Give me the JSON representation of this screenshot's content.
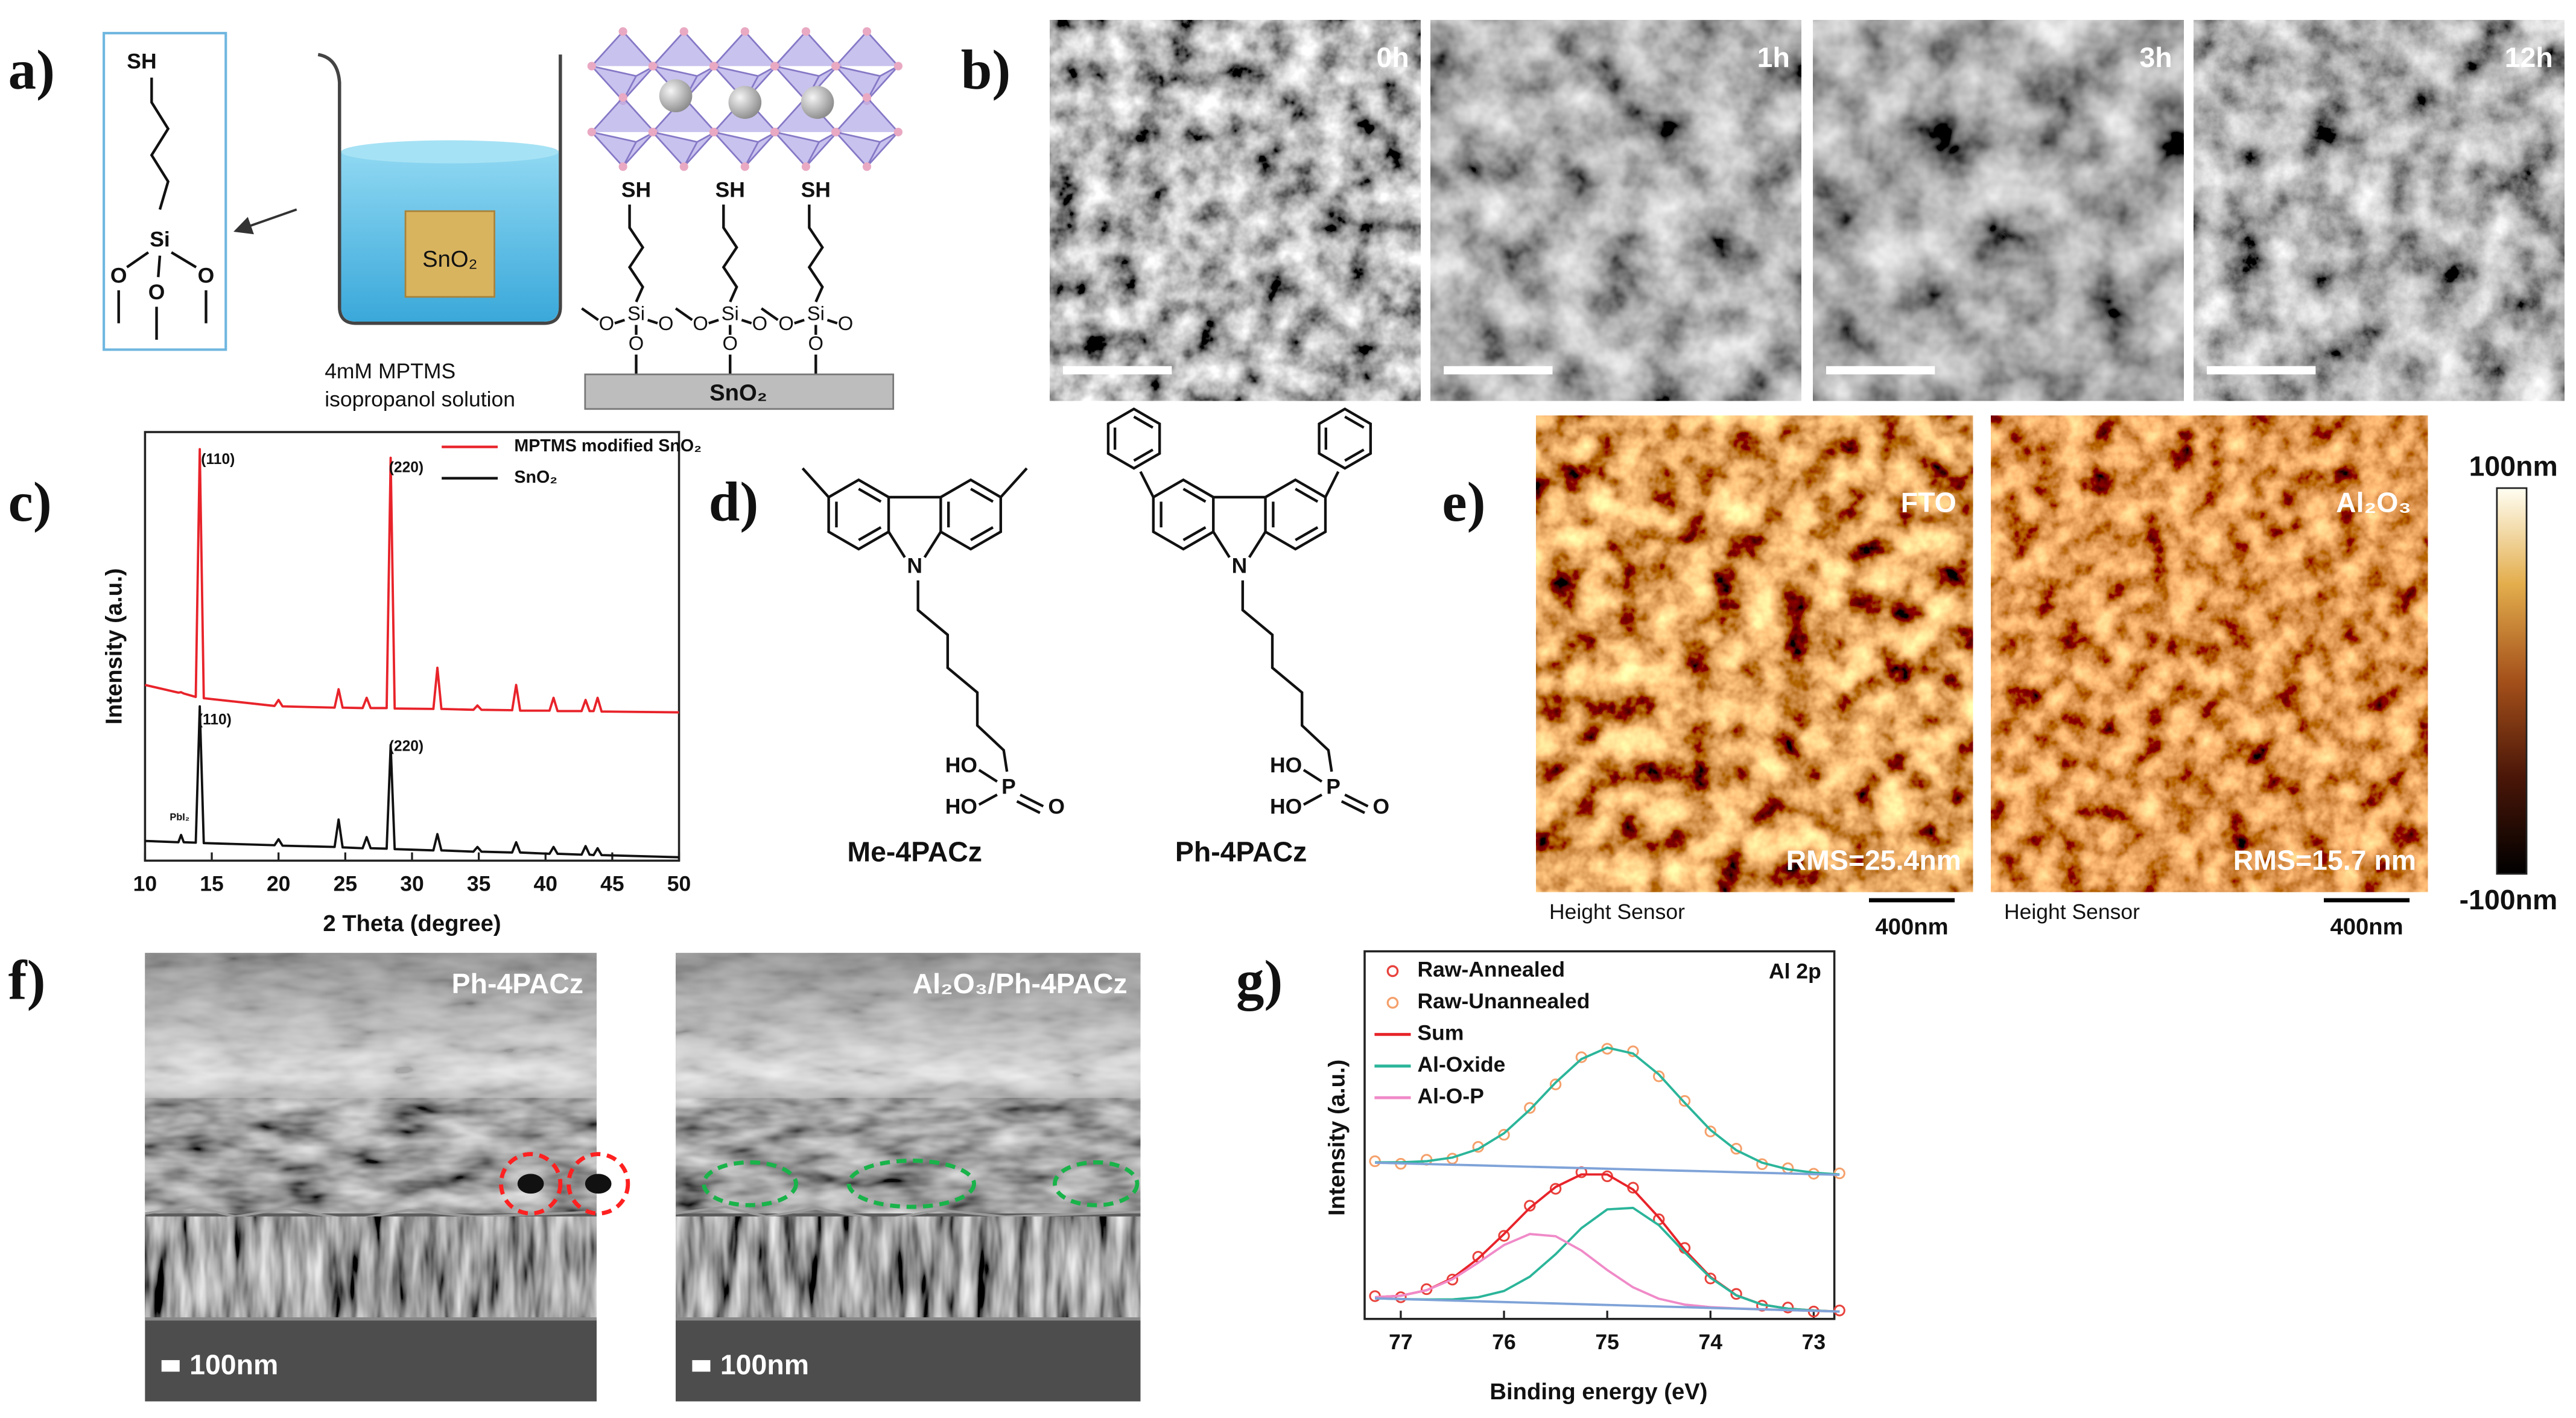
{
  "panels": {
    "a": {
      "label": "a)",
      "molecule": {
        "head": "SH",
        "center": "Si",
        "oxygens": [
          "O",
          "O",
          "O"
        ]
      },
      "beaker": {
        "substrate": "SnO₂",
        "caption": [
          "4mM MPTMS",
          "isopropanol solution"
        ]
      },
      "surface": {
        "thiols": [
          "SH",
          "SH",
          "SH"
        ],
        "silicons": [
          "Si",
          "Si",
          "Si"
        ],
        "oxygens": [
          "O",
          "O",
          "O",
          "O",
          "O",
          "O",
          "O",
          "O",
          "O"
        ],
        "substrate": "SnO₂"
      }
    },
    "b": {
      "label": "b)",
      "images": [
        "0h",
        "1h",
        "3h",
        "12h"
      ]
    },
    "c": {
      "label": "c)"
    },
    "d": {
      "label": "d)",
      "molecules": [
        {
          "name": "Me-4PACz",
          "atoms": [
            "N",
            "HO",
            "HO",
            "P",
            "O"
          ]
        },
        {
          "name": "Ph-4PACz",
          "atoms": [
            "N",
            "HO",
            "HO",
            "P",
            "O"
          ]
        }
      ]
    },
    "e": {
      "label": "e)",
      "images": [
        {
          "label": "FTO",
          "rms": "RMS=25.4nm",
          "sensor": "Height Sensor",
          "scale": "400nm"
        },
        {
          "label": "Al₂O₃",
          "rms": "RMS=15.7 nm",
          "sensor": "Height Sensor",
          "scale": "400nm"
        }
      ],
      "colorbar": {
        "max": "100nm",
        "min": "-100nm"
      }
    },
    "f": {
      "label": "f)",
      "images": [
        {
          "label": "Ph-4PACz",
          "scale": "100nm"
        },
        {
          "label": "Al₂O₃/Ph-4PACz",
          "scale": "100nm"
        }
      ]
    },
    "g": {
      "label": "g)"
    }
  },
  "chart_data": [
    {
      "type": "line",
      "xlabel": "2 Theta (degree)",
      "ylabel": "Intensity (a.u.)",
      "x": [
        10,
        12.5,
        12.7,
        12.9,
        13.8,
        14.1,
        14.4,
        19.7,
        20,
        20.3,
        24.2,
        24.5,
        24.8,
        26.3,
        26.6,
        26.9,
        28.1,
        28.4,
        28.7,
        31.6,
        31.9,
        32.2,
        34.6,
        34.9,
        35.2,
        37.5,
        37.8,
        38.1,
        40.3,
        40.6,
        40.9,
        42.7,
        43,
        43.3,
        43.6,
        43.9,
        44.2,
        50
      ],
      "series": [
        {
          "name": "MPTMS modified SnO₂",
          "color": "#e8232a",
          "values": [
            41,
            39.2,
            39.3,
            39.0,
            38.2,
            96,
            37.9,
            36.1,
            37.5,
            36,
            35.7,
            40,
            35.7,
            35.6,
            38,
            35.6,
            35.6,
            94,
            35.5,
            35.4,
            45,
            35.4,
            35.2,
            36.2,
            35.2,
            35.1,
            41,
            35,
            35,
            38,
            34.9,
            34.9,
            37.5,
            34.9,
            34.9,
            38,
            34.8,
            34.6
          ]
        },
        {
          "name": "SnO₂",
          "color": "#111111",
          "values": [
            4.6,
            4.3,
            6,
            4.3,
            4.2,
            36,
            4.1,
            3.6,
            5,
            3.5,
            3.2,
            9.6,
            3.1,
            2.9,
            5.5,
            2.9,
            2.8,
            27,
            2.7,
            2.4,
            6.2,
            2.4,
            2.1,
            3.2,
            2.1,
            1.9,
            4.3,
            1.9,
            1.6,
            3.2,
            1.6,
            1.4,
            3.4,
            1.4,
            1.3,
            2.9,
            1.3,
            0.8
          ]
        }
      ],
      "xlim": [
        10,
        50
      ],
      "xticks": [
        10,
        15,
        20,
        25,
        30,
        35,
        40,
        45,
        50
      ],
      "ylim": [
        0,
        100
      ],
      "legend": "upper right",
      "annotations": [
        {
          "text": "(110)",
          "color": "#e8232a"
        },
        {
          "text": "(220)",
          "color": "#e8232a"
        },
        {
          "text": "(110)",
          "color": "#111111"
        },
        {
          "text": "(220)",
          "color": "#111111"
        },
        {
          "text": "PbI₂",
          "color": "#111111"
        }
      ]
    },
    {
      "type": "line",
      "xlabel": "Binding energy (eV)",
      "ylabel": "Intensity (a.u.)",
      "annotation": "Al 2p",
      "x": [
        77.25,
        77,
        76.75,
        76.5,
        76.25,
        76,
        75.75,
        75.5,
        75.25,
        75,
        74.75,
        74.5,
        74.25,
        74,
        73.75,
        73.5,
        73.25,
        73,
        72.75
      ],
      "series": [
        {
          "name": "Raw-Annealed",
          "color": "#e8423c",
          "mode": "markers",
          "values": [
            6.2,
            5.9,
            8.1,
            10.7,
            16.9,
            22.6,
            30.8,
            35.4,
            39.9,
            38.8,
            35.7,
            27.1,
            19.3,
            11.0,
            6.8,
            3.6,
            3.1,
            2.0,
            2.3
          ]
        },
        {
          "name": "Raw-Unannealed",
          "color": "#f5a06b",
          "mode": "markers",
          "values": [
            42.9,
            42.2,
            43.3,
            43.6,
            46.8,
            50.1,
            57.4,
            63.8,
            71.2,
            73.5,
            72.8,
            66.0,
            59.3,
            51.0,
            46.3,
            42.1,
            41.0,
            39.5,
            39.6
          ]
        },
        {
          "name": "Sum",
          "color": "#e8232a",
          "mode": "line",
          "values": [
            5.9,
            6.3,
            7.8,
            11.1,
            16.4,
            23.1,
            30.2,
            35.9,
            39.3,
            39.3,
            35.2,
            27.6,
            18.8,
            11.4,
            6.45,
            3.9,
            2.8,
            2.3,
            2.0
          ]
        },
        {
          "name": "Al-Oxide",
          "color": "#2bb59a",
          "mode": "line",
          "values": [
            5.6,
            5.4,
            5.3,
            5.3,
            5.9,
            7.6,
            11.5,
            17.6,
            24.7,
            29.8,
            30.2,
            25.5,
            18.1,
            11.2,
            6.4,
            3.9,
            2.8,
            2.3,
            2.0
          ]
        },
        {
          "name": "Al-O-P",
          "color": "#f08ac8",
          "mode": "line",
          "values": [
            5.9,
            6.3,
            7.8,
            10.8,
            15.3,
            20.1,
            23.1,
            22.5,
            18.6,
            13.3,
            8.6,
            5.5,
            3.9,
            3.2,
            2.85,
            2.6,
            2.4,
            2.2,
            2.0
          ]
        },
        {
          "color": "#2bb59a",
          "mode": "line",
          "values": [
            42.6,
            42.6,
            42.9,
            43.9,
            46.2,
            50.5,
            56.9,
            64.3,
            70.7,
            73.8,
            72.2,
            66.5,
            58.8,
            51.4,
            45.9,
            42.5,
            40.7,
            39.8,
            39.3
          ]
        },
        {
          "color": "#7fa3d8",
          "mode": "line",
          "values": [
            42.5,
            42.32,
            42.13,
            41.95,
            41.77,
            41.58,
            41.4,
            41.22,
            41.03,
            40.85,
            40.67,
            40.48,
            40.3,
            40.12,
            39.93,
            39.75,
            39.57,
            39.38,
            39.2
          ]
        },
        {
          "color": "#7fa3d8",
          "mode": "line",
          "values": [
            5.6,
            5.4,
            5.2,
            5.0,
            4.8,
            4.6,
            4.4,
            4.2,
            4.0,
            3.8,
            3.6,
            3.4,
            3.2,
            3.0,
            2.8,
            2.6,
            2.4,
            2.2,
            2.0
          ]
        }
      ],
      "xlim": [
        77.35,
        72.8
      ],
      "xticks": [
        77,
        76,
        75,
        74,
        73
      ],
      "ylim": [
        0,
        100
      ],
      "legend": "upper left"
    }
  ]
}
